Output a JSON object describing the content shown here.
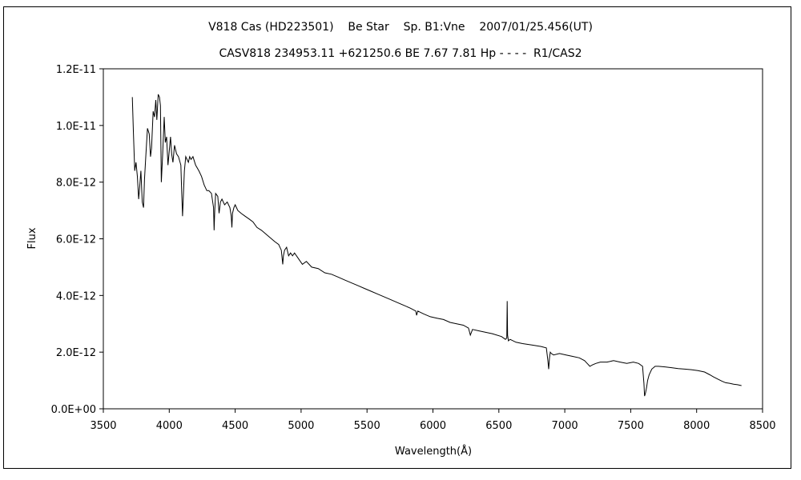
{
  "chart_data": {
    "type": "line",
    "title": "V818 Cas (HD223501)    Be Star    Sp. B1:Vne    2007/01/25.456(UT)",
    "subtitle": "CASV818 234953.11 +621250.6 BE 7.67 7.81 Hp - - - -  R1/CAS2",
    "xlabel": "Wavelength(Å)",
    "ylabel": "Flux",
    "xlim": [
      3500,
      8500
    ],
    "ylim": [
      0,
      1.2e-11
    ],
    "x_ticks": [
      3500,
      4000,
      4500,
      5000,
      5500,
      6000,
      6500,
      7000,
      7500,
      8000,
      8500
    ],
    "y_tick_values": [
      0,
      2e-12,
      4e-12,
      6e-12,
      8e-12,
      1e-11,
      1.2e-11
    ],
    "y_tick_labels": [
      "0.0E+00",
      "2.0E-12",
      "4.0E-12",
      "6.0E-12",
      "8.0E-12",
      "1.0E-11",
      "1.2E-11"
    ],
    "grid": false,
    "legend": "none",
    "series": [
      {
        "color": "#000000",
        "x": [
          3720,
          3728,
          3738,
          3748,
          3758,
          3768,
          3775,
          3785,
          3795,
          3805,
          3812,
          3822,
          3835,
          3848,
          3858,
          3866,
          3878,
          3888,
          3898,
          3906,
          3916,
          3926,
          3933,
          3940,
          3950,
          3962,
          3970,
          3980,
          3990,
          4000,
          4010,
          4018,
          4028,
          4040,
          4055,
          4070,
          4088,
          4095,
          4101,
          4107,
          4115,
          4125,
          4135,
          4145,
          4155,
          4165,
          4180,
          4200,
          4225,
          4245,
          4265,
          4285,
          4300,
          4320,
          4336,
          4340,
          4345,
          4352,
          4368,
          4378,
          4388,
          4400,
          4420,
          4440,
          4460,
          4470,
          4475,
          4480,
          4490,
          4500,
          4520,
          4545,
          4575,
          4605,
          4635,
          4665,
          4700,
          4750,
          4800,
          4830,
          4850,
          4861,
          4866,
          4875,
          4890,
          4905,
          4920,
          4935,
          4950,
          4980,
          5010,
          5040,
          5080,
          5130,
          5180,
          5230,
          5280,
          5330,
          5380,
          5430,
          5480,
          5530,
          5580,
          5630,
          5680,
          5730,
          5780,
          5830,
          5870,
          5876,
          5885,
          5930,
          5980,
          6030,
          6080,
          6130,
          6180,
          6230,
          6270,
          6284,
          6300,
          6350,
          6400,
          6450,
          6520,
          6550,
          6560,
          6563,
          6566,
          6572,
          6585,
          6630,
          6680,
          6750,
          6820,
          6860,
          6872,
          6878,
          6884,
          6890,
          6898,
          6915,
          6960,
          7010,
          7060,
          7110,
          7150,
          7170,
          7190,
          7210,
          7235,
          7270,
          7320,
          7370,
          7420,
          7470,
          7520,
          7560,
          7590,
          7600,
          7605,
          7612,
          7620,
          7628,
          7640,
          7660,
          7685,
          7710,
          7760,
          7810,
          7860,
          7910,
          7960,
          8010,
          8060,
          8100,
          8130,
          8160,
          8190,
          8220,
          8250,
          8280,
          8310,
          8340
        ],
        "values": [
          1.1e-11,
          9.8e-12,
          8.4e-12,
          8.7e-12,
          8.2e-12,
          7.4e-12,
          7.8e-12,
          8.4e-12,
          7.3e-12,
          7.1e-12,
          8.1e-12,
          8.9e-12,
          9.9e-12,
          9.7e-12,
          8.9e-12,
          9.2e-12,
          1.05e-11,
          1.03e-11,
          1.09e-11,
          1.02e-11,
          1.11e-11,
          1.1e-11,
          1.07e-11,
          8e-12,
          9e-12,
          1.03e-11,
          9.4e-12,
          9.6e-12,
          8.6e-12,
          9.1e-12,
          9.6e-12,
          9e-12,
          8.7e-12,
          9.3e-12,
          9e-12,
          8.9e-12,
          8.6e-12,
          7.6e-12,
          6.8e-12,
          7.5e-12,
          8.4e-12,
          8.9e-12,
          8.8e-12,
          8.7e-12,
          8.9e-12,
          8.8e-12,
          8.9e-12,
          8.6e-12,
          8.4e-12,
          8.2e-12,
          7.9e-12,
          7.7e-12,
          7.7e-12,
          7.6e-12,
          7.1e-12,
          6.3e-12,
          7e-12,
          7.6e-12,
          7.5e-12,
          6.9e-12,
          7.3e-12,
          7.4e-12,
          7.2e-12,
          7.3e-12,
          7.1e-12,
          6.8e-12,
          6.4e-12,
          6.9e-12,
          7.1e-12,
          7.2e-12,
          7e-12,
          6.9e-12,
          6.8e-12,
          6.7e-12,
          6.6e-12,
          6.4e-12,
          6.3e-12,
          6.1e-12,
          5.9e-12,
          5.8e-12,
          5.6e-12,
          5.1e-12,
          5.4e-12,
          5.6e-12,
          5.7e-12,
          5.4e-12,
          5.5e-12,
          5.4e-12,
          5.5e-12,
          5.3e-12,
          5.1e-12,
          5.2e-12,
          5e-12,
          4.95e-12,
          4.8e-12,
          4.75e-12,
          4.65e-12,
          4.55e-12,
          4.45e-12,
          4.35e-12,
          4.25e-12,
          4.15e-12,
          4.05e-12,
          3.95e-12,
          3.85e-12,
          3.75e-12,
          3.65e-12,
          3.55e-12,
          3.45e-12,
          3.3e-12,
          3.45e-12,
          3.35e-12,
          3.25e-12,
          3.2e-12,
          3.15e-12,
          3.05e-12,
          3e-12,
          2.95e-12,
          2.85e-12,
          2.6e-12,
          2.8e-12,
          2.75e-12,
          2.7e-12,
          2.65e-12,
          2.55e-12,
          2.45e-12,
          2.5e-12,
          3.8e-12,
          2.6e-12,
          2.4e-12,
          2.45e-12,
          2.35e-12,
          2.3e-12,
          2.25e-12,
          2.2e-12,
          2.15e-12,
          1.7e-12,
          1.4e-12,
          1.8e-12,
          2e-12,
          1.95e-12,
          1.9e-12,
          1.95e-12,
          1.9e-12,
          1.85e-12,
          1.8e-12,
          1.7e-12,
          1.6e-12,
          1.5e-12,
          1.55e-12,
          1.6e-12,
          1.65e-12,
          1.65e-12,
          1.7e-12,
          1.65e-12,
          1.6e-12,
          1.65e-12,
          1.6e-12,
          1.5e-12,
          9e-13,
          4.5e-13,
          5.5e-13,
          7.5e-13,
          1e-12,
          1.2e-12,
          1.4e-12,
          1.5e-12,
          1.5e-12,
          1.48e-12,
          1.45e-12,
          1.42e-12,
          1.4e-12,
          1.38e-12,
          1.35e-12,
          1.3e-12,
          1.2e-12,
          1.12e-12,
          1.05e-12,
          9.8e-13,
          9.2e-13,
          9e-13,
          8.7e-13,
          8.5e-13,
          8.2e-13
        ]
      }
    ]
  }
}
